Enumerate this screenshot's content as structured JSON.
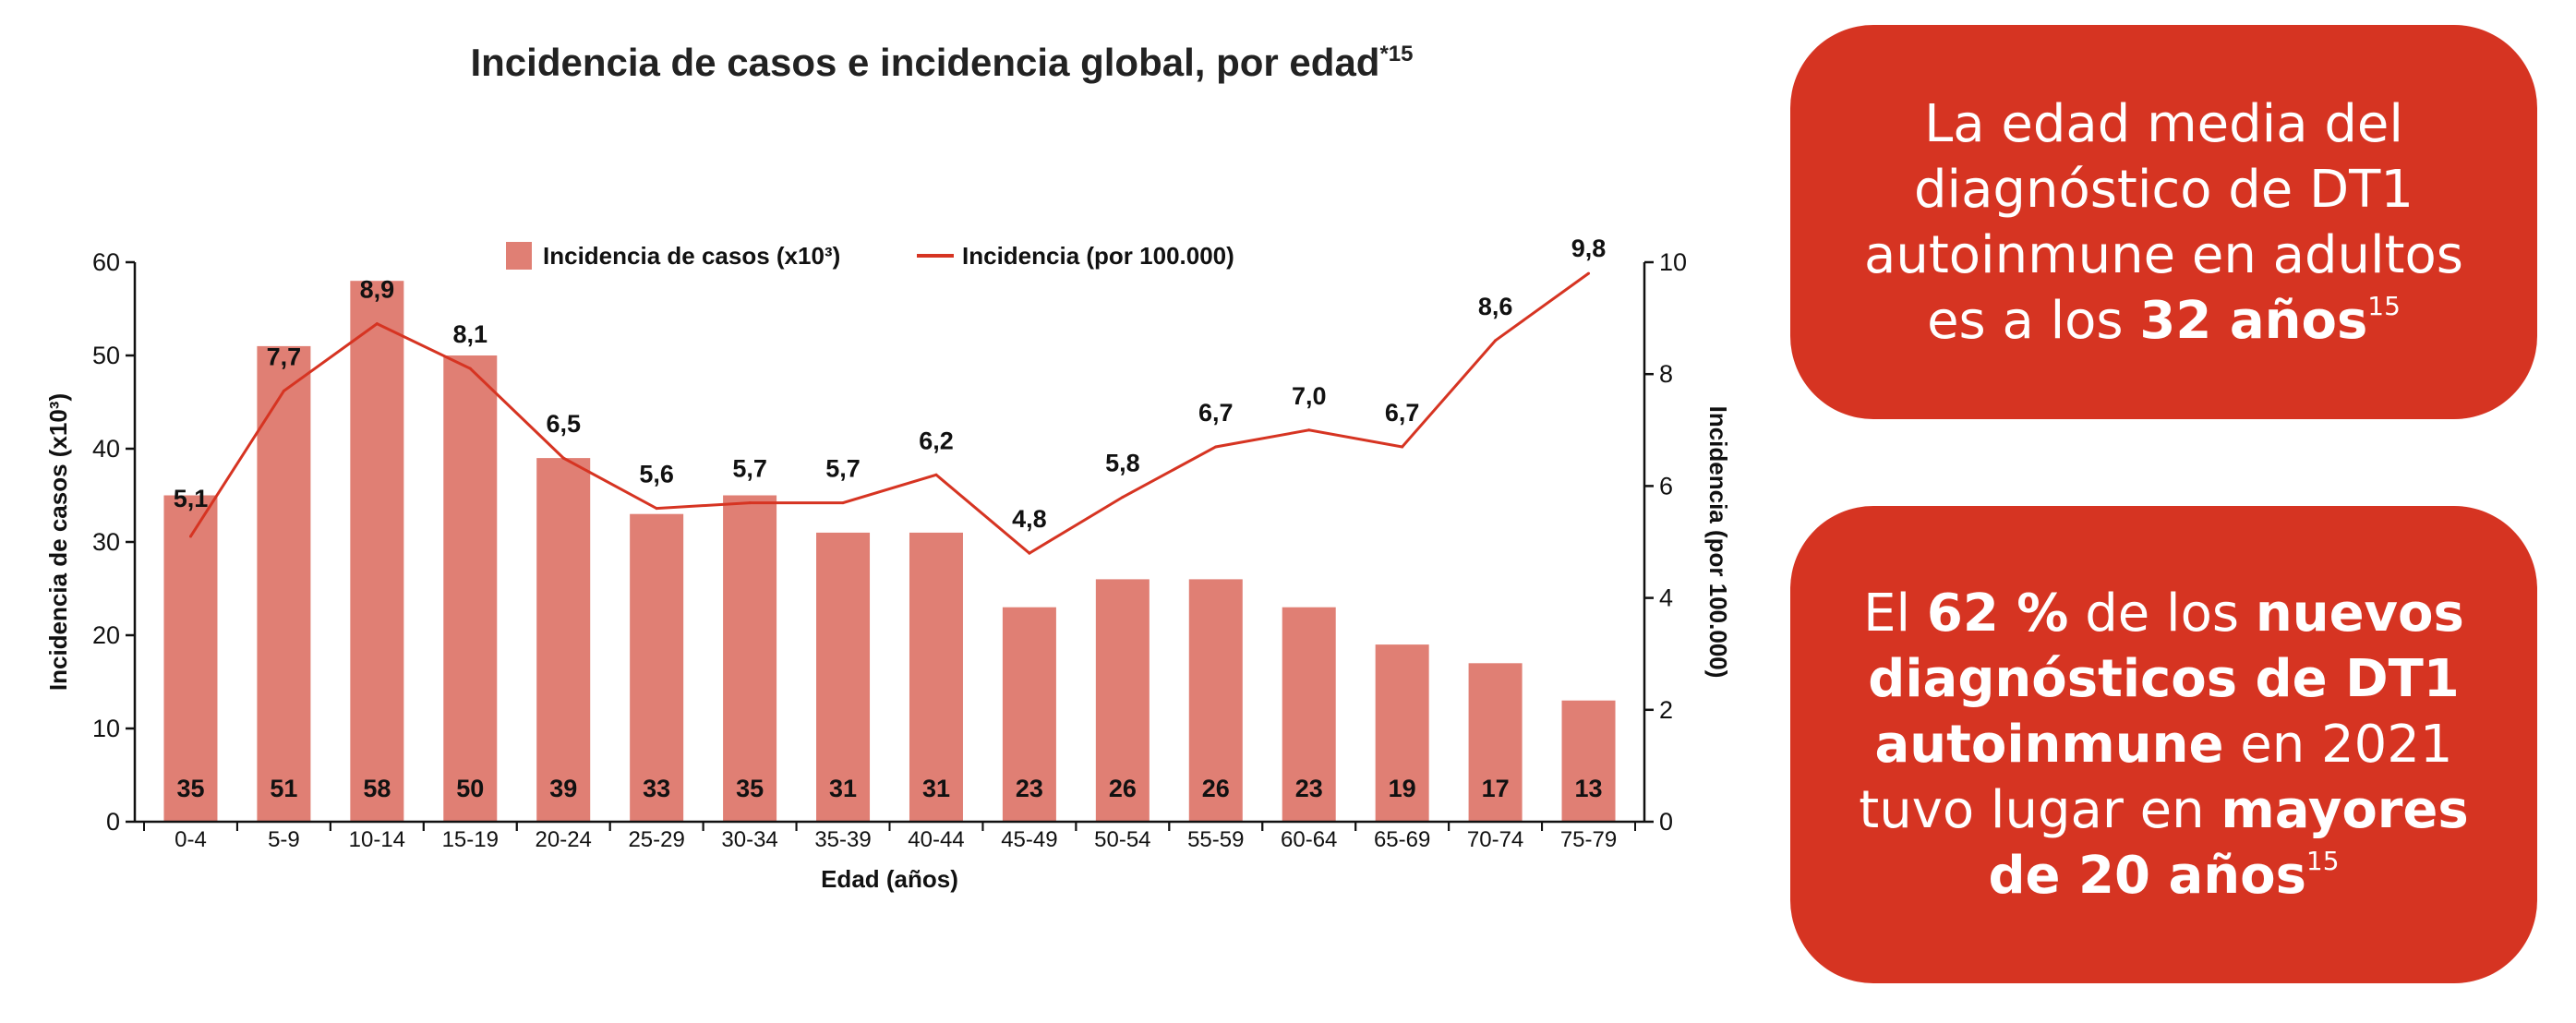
{
  "chart_data": {
    "type": "bar+line",
    "title": "Incidencia de casos e incidencia global, por edad",
    "title_sup": "*15",
    "xlabel": "Edad (años)",
    "ylabel": "Incidencia de casos (x10³)",
    "y2label": "Incidencia (por 100.000)",
    "ylim": [
      0,
      60
    ],
    "y2lim": [
      0,
      10
    ],
    "yticks": [
      0,
      10,
      20,
      30,
      40,
      50,
      60
    ],
    "y2ticks": [
      0,
      2,
      4,
      6,
      8,
      10
    ],
    "legend_position": "top",
    "grid": false,
    "categories": [
      "0-4",
      "5-9",
      "10-14",
      "15-19",
      "20-24",
      "25-29",
      "30-34",
      "35-39",
      "40-44",
      "45-49",
      "50-54",
      "55-59",
      "60-64",
      "65-69",
      "70-74",
      "75-79"
    ],
    "series": [
      {
        "name": "Incidencia de casos (x10³)",
        "type": "bar",
        "axis": "left",
        "color": "#e07f74",
        "values": [
          35,
          51,
          58,
          50,
          39,
          33,
          35,
          31,
          31,
          23,
          26,
          26,
          23,
          19,
          17,
          13
        ],
        "labels": [
          "35",
          "51",
          "58",
          "50",
          "39",
          "33",
          "35",
          "31",
          "31",
          "23",
          "26",
          "26",
          "23",
          "19",
          "17",
          "13"
        ]
      },
      {
        "name": "Incidencia (por 100.000)",
        "type": "line",
        "axis": "right",
        "color": "#d63422",
        "values": [
          5.1,
          7.7,
          8.9,
          8.1,
          6.5,
          5.6,
          5.7,
          5.7,
          6.2,
          4.8,
          5.8,
          6.7,
          7.0,
          6.7,
          8.6,
          9.8
        ],
        "labels": [
          "5,1",
          "7,7",
          "8,9",
          "8,1",
          "6,5",
          "5,6",
          "5,7",
          "5,7",
          "6,2",
          "4,8",
          "5,8",
          "6,7",
          "7,0",
          "6,7",
          "8,6",
          "9,8"
        ]
      }
    ]
  },
  "callouts": {
    "box1": {
      "text": "La edad media del diagnóstico de DT1 autoinmune en adultos es a los ",
      "bold": "32 años",
      "sup": "15"
    },
    "box2": {
      "p1": "El ",
      "b1": "62 %",
      "p2": " de los ",
      "b2": "nuevos diagnósticos de DT1 autoinmune",
      "p3": " en 2021 tuvo lugar en ",
      "b3": "mayores de 20 años",
      "sup": "15"
    }
  },
  "colors": {
    "accent": "#d63422",
    "bar": "#e07f74"
  }
}
